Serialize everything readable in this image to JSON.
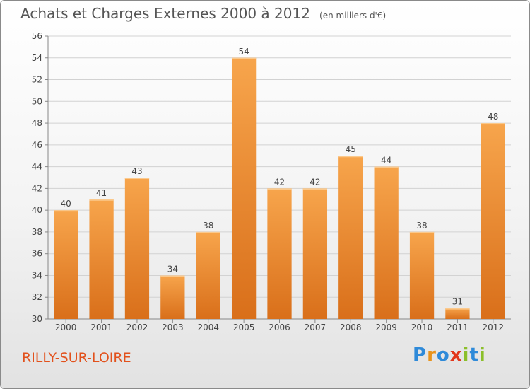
{
  "header": {
    "title": "Achats et Charges Externes 2000 à 2012",
    "unit": "(en milliers d'€)"
  },
  "footer": {
    "town": "RILLY-SUR-LOIRE",
    "brand": "Proxiti"
  },
  "colors": {
    "bar_light": "#f7a54c",
    "bar_dark": "#d96f1a",
    "town_text": "#e2511c",
    "brand_letters": [
      "#2e8ad9",
      "#e8931d",
      "#2e8ad9",
      "#e2371b",
      "#8bbf2a",
      "#2e8ad9",
      "#8bbf2a"
    ]
  },
  "chart_data": {
    "type": "bar",
    "title": "Achats et Charges Externes 2000 à 2012",
    "subtitle": "(en milliers d'€)",
    "categories": [
      "2000",
      "2001",
      "2002",
      "2003",
      "2004",
      "2005",
      "2006",
      "2007",
      "2008",
      "2009",
      "2010",
      "2011",
      "2012"
    ],
    "values": [
      40,
      41,
      43,
      34,
      38,
      54,
      42,
      42,
      45,
      44,
      38,
      31,
      48
    ],
    "ylim": [
      30,
      56
    ],
    "yticks": [
      30,
      32,
      34,
      36,
      38,
      40,
      42,
      44,
      46,
      48,
      50,
      52,
      54,
      56
    ],
    "grid": true,
    "data_labels": true
  }
}
